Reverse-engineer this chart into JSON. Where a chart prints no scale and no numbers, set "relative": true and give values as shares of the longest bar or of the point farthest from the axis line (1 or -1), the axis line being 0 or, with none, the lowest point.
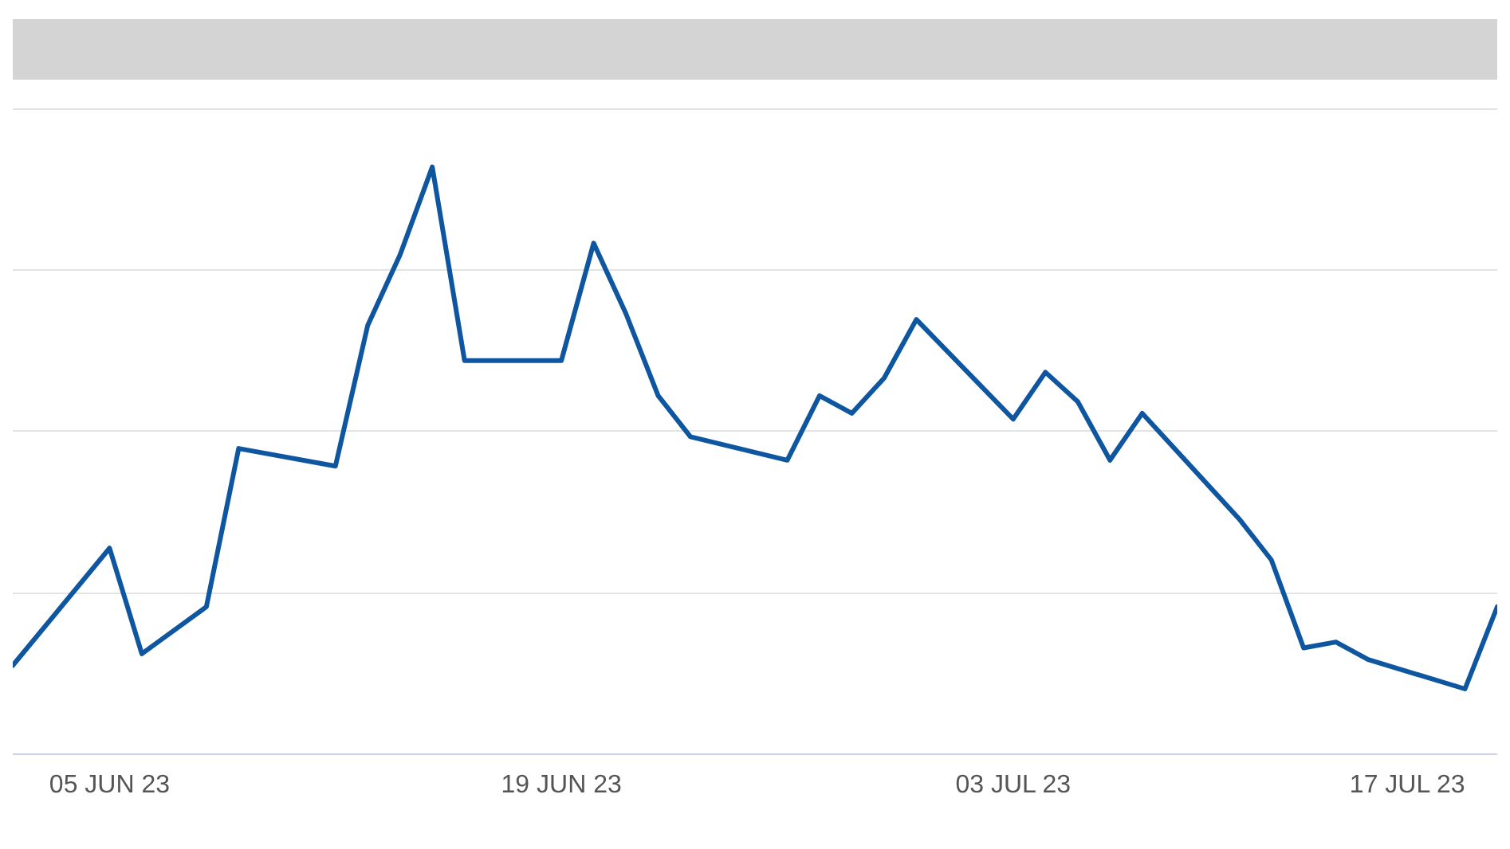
{
  "chart_data": {
    "type": "line",
    "relative": true,
    "x": [
      "--06-02",
      "--06-05",
      "--06-06",
      "--06-07",
      "--06-08",
      "--06-09",
      "--06-12",
      "--06-13",
      "--06-14",
      "--06-15",
      "--06-16",
      "--06-19",
      "--06-20",
      "--06-21",
      "--06-22",
      "--06-23",
      "--06-26",
      "--06-27",
      "--06-28",
      "--06-29",
      "--06-30",
      "--07-03",
      "--07-04",
      "--07-05",
      "--07-06",
      "--07-07",
      "--07-10",
      "--07-11",
      "--07-12",
      "--07-13",
      "--07-14",
      "--07-17",
      "--07-18"
    ],
    "series": [
      {
        "color": "#0f56a0",
        "values": [
          0.15,
          0.35,
          0.17,
          0.21,
          0.25,
          0.52,
          0.49,
          0.73,
          0.85,
          1,
          0.67,
          0.67,
          0.87,
          0.75,
          0.61,
          0.54,
          0.5,
          0.61,
          0.58,
          0.64,
          0.74,
          0.57,
          0.65,
          0.6,
          0.5,
          0.58,
          0.4,
          0.33,
          0.18,
          0.19,
          0.16,
          0.11,
          0.25
        ]
      }
    ],
    "xlim": [
      "--06-02",
      "--07-18"
    ],
    "xticks": [
      {
        "value": "--06-05",
        "label": "05 JUN 23"
      },
      {
        "value": "--06-19",
        "label": "19 JUN 23"
      },
      {
        "value": "--07-03",
        "label": "03 JUL 23"
      },
      {
        "value": "--07-17",
        "label": "17 JUL 23"
      }
    ],
    "grid": "y",
    "marker": "none",
    "line_style": "solid"
  }
}
